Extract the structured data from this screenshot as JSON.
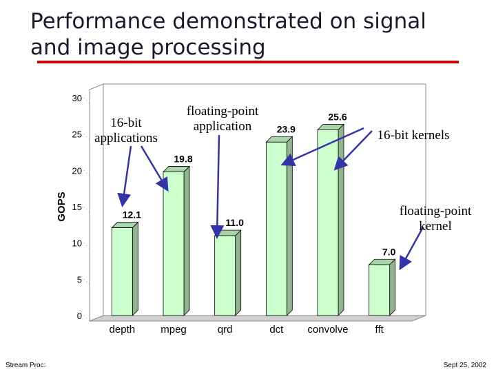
{
  "slide": {
    "title": "Performance demonstrated on signal and image processing",
    "footer_left": "Stream Proc:",
    "footer_right": "Sept 25, 2002"
  },
  "colors": {
    "title_rule": "#cc0000",
    "bar_front": "#ccffcc",
    "bar_side": "#8fb58f",
    "bar_top": "#aad4aa",
    "arrow": "#3333aa"
  },
  "annotations": {
    "sixteen_bit_apps": "16-bit applications",
    "fp_application": "floating-point application",
    "sixteen_bit_kernels": "16-bit kernels",
    "fp_kernel": "floating-point kernel"
  },
  "chart_data": {
    "type": "bar",
    "style": "3d",
    "title": "",
    "xlabel": "",
    "ylabel": "GOPS",
    "ylim": [
      0,
      30
    ],
    "yticks": [
      0,
      5,
      10,
      15,
      20,
      25,
      30
    ],
    "grid": false,
    "categories": [
      "depth",
      "mpeg",
      "qrd",
      "dct",
      "convolve",
      "fft"
    ],
    "values": [
      12.1,
      19.8,
      11.0,
      23.9,
      25.6,
      7.0
    ],
    "data_labels": [
      "12.1",
      "19.8",
      "11.0",
      "23.9",
      "25.6",
      "7.0"
    ]
  }
}
